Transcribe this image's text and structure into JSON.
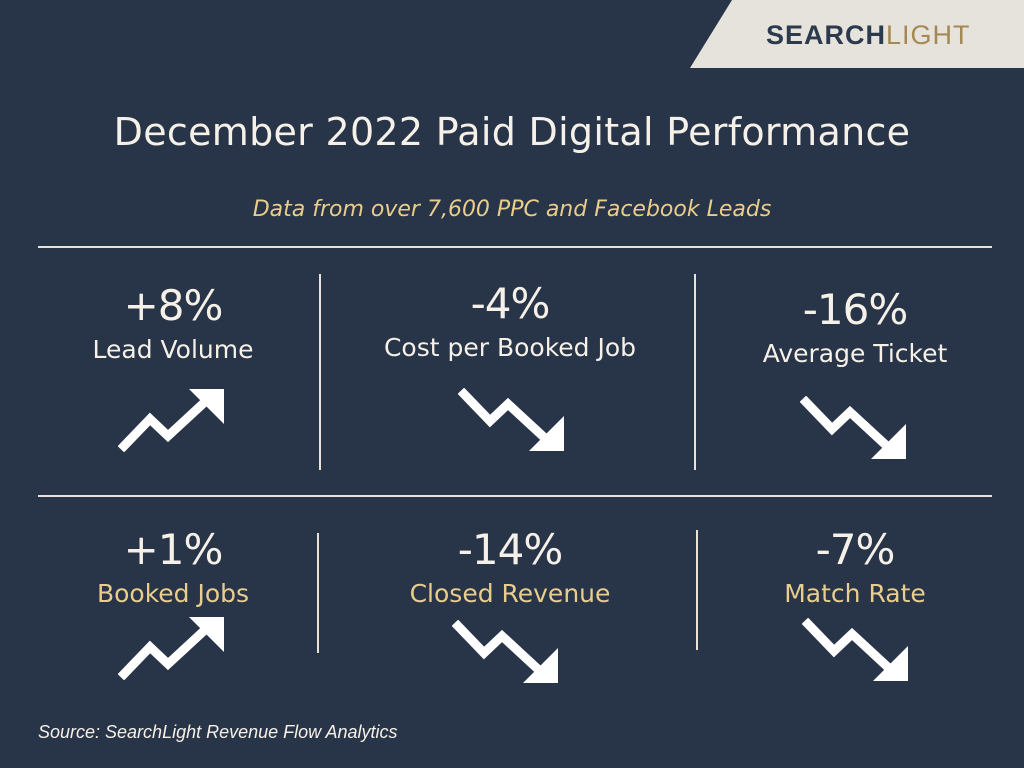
{
  "brand": {
    "logo_part1": "SEARCH",
    "logo_part2": "LIGHT"
  },
  "title": "December 2022 Paid Digital Performance",
  "subtitle": "Data from over 7,600 PPC and Facebook Leads",
  "metrics": [
    {
      "value": "+8%",
      "label": "Lead Volume",
      "trend": "up-arrow-icon"
    },
    {
      "value": "-4%",
      "label": "Cost per Booked Job",
      "trend": "down-arrow-icon"
    },
    {
      "value": "-16%",
      "label": "Average Ticket",
      "trend": "down-arrow-icon"
    },
    {
      "value": "+1%",
      "label": "Booked Jobs",
      "trend": "up-arrow-icon"
    },
    {
      "value": "-14%",
      "label": "Closed Revenue",
      "trend": "down-arrow-icon"
    },
    {
      "value": "-7%",
      "label": "Match Rate",
      "trend": "down-arrow-icon"
    }
  ],
  "colors": {
    "background": "#283447",
    "accent_gold": "#e9cd8d",
    "text_light": "#f6f1e8",
    "logo_tab": "#e6e2dc"
  },
  "source": "Source: SearchLight Revenue Flow Analytics"
}
